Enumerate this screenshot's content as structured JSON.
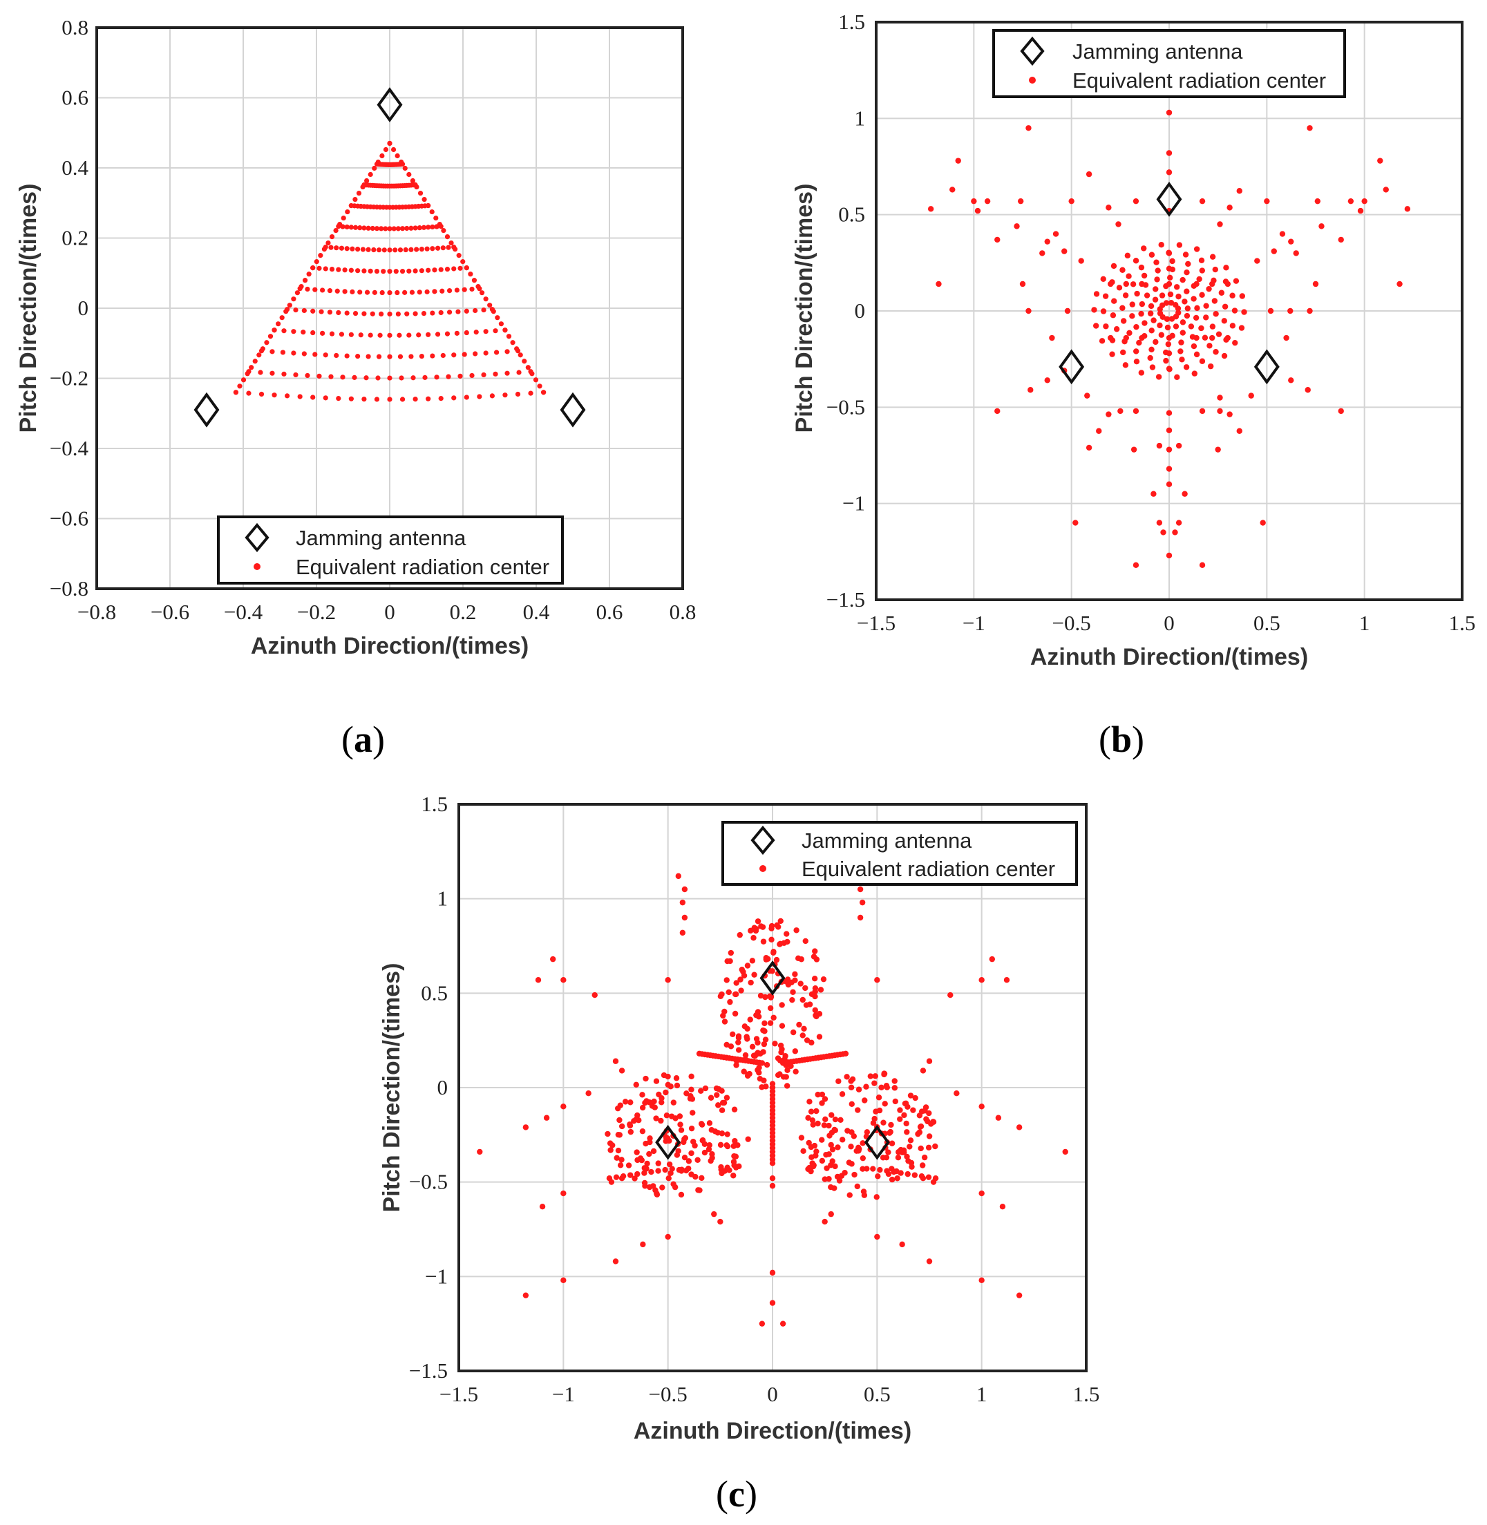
{
  "figure": {
    "panels": [
      "a",
      "b",
      "c"
    ]
  },
  "colors": {
    "point": "#ff1a1a",
    "marker": "#111111",
    "grid": "#d4d4d4",
    "frame": "#222222"
  },
  "chart_data": [
    {
      "id": "a",
      "type": "scatter",
      "caption_letter": "a",
      "xlabel": "Azinuth Direction/(times)",
      "ylabel": "Pitch Direction/(times)",
      "xlim": [
        -0.8,
        0.8
      ],
      "ylim": [
        -0.8,
        0.8
      ],
      "xticks": [
        -0.8,
        -0.6,
        -0.4,
        -0.2,
        0,
        0.2,
        0.4,
        0.6,
        0.8
      ],
      "yticks": [
        -0.8,
        -0.6,
        -0.4,
        -0.2,
        0,
        0.2,
        0.4,
        0.6,
        0.8
      ],
      "xticklabels": [
        "−0.8",
        "−0.6",
        "−0.4",
        "−0.2",
        "0",
        "0.2",
        "0.4",
        "0.6",
        "0.8"
      ],
      "yticklabels": [
        "−0.8",
        "−0.6",
        "−0.4",
        "−0.2",
        "0",
        "0.2",
        "0.4",
        "0.6",
        "0.8"
      ],
      "grid": true,
      "legend_position": "bottom-center",
      "legend": [
        "Jamming antenna",
        "Equivalent radiation center"
      ],
      "series": [
        {
          "name": "Jamming antenna",
          "marker": "diamond",
          "points": [
            [
              0,
              0.58
            ],
            [
              -0.5,
              -0.29
            ],
            [
              0.5,
              -0.29
            ]
          ]
        },
        {
          "name": "Equivalent radiation center",
          "marker": "dot",
          "generator": "triangle-fan",
          "vertices": [
            [
              0,
              0.47
            ],
            [
              -0.42,
              -0.24
            ],
            [
              0.42,
              -0.24
            ]
          ],
          "rays": 24,
          "points_per_ray": 12
        }
      ]
    },
    {
      "id": "b",
      "type": "scatter",
      "caption_letter": "b",
      "xlabel": "Azinuth Direction/(times)",
      "ylabel": "Pitch Direction/(times)",
      "xlim": [
        -1.5,
        1.5
      ],
      "ylim": [
        -1.5,
        1.5
      ],
      "xticks": [
        -1.5,
        -1,
        -0.5,
        0,
        0.5,
        1,
        1.5
      ],
      "yticks": [
        -1.5,
        -1,
        -0.5,
        0,
        0.5,
        1,
        1.5
      ],
      "xticklabels": [
        "−1.5",
        "−1",
        "−0.5",
        "0",
        "0.5",
        "1",
        "1.5"
      ],
      "yticklabels": [
        "−1.5",
        "−1",
        "−0.5",
        "0",
        "0.5",
        "1",
        "1.5"
      ],
      "grid": true,
      "legend_position": "top-center",
      "legend": [
        "Jamming antenna",
        "Equivalent radiation center"
      ],
      "series": [
        {
          "name": "Jamming antenna",
          "marker": "diamond",
          "points": [
            [
              0,
              0.58
            ],
            [
              -0.5,
              -0.29
            ],
            [
              0.5,
              -0.29
            ]
          ]
        },
        {
          "name": "Equivalent radiation center",
          "marker": "dot",
          "generator": "radial-dense",
          "center": [
            0,
            0
          ],
          "points": [
            [
              0,
              1.03
            ],
            [
              -0.72,
              0.95
            ],
            [
              0.72,
              0.95
            ],
            [
              -1.08,
              0.78
            ],
            [
              1.08,
              0.78
            ],
            [
              -1.11,
              0.63
            ],
            [
              1.11,
              0.63
            ],
            [
              -1.22,
              0.53
            ],
            [
              1.22,
              0.53
            ],
            [
              -1.0,
              0.57
            ],
            [
              1.0,
              0.57
            ],
            [
              -0.93,
              0.57
            ],
            [
              0.93,
              0.57
            ],
            [
              -0.98,
              0.52
            ],
            [
              0.98,
              0.52
            ],
            [
              -0.76,
              0.57
            ],
            [
              0.76,
              0.57
            ],
            [
              -0.5,
              0.57
            ],
            [
              0.5,
              0.57
            ],
            [
              -0.17,
              0.57
            ],
            [
              0.17,
              0.57
            ],
            [
              -0.88,
              0.37
            ],
            [
              0.88,
              0.37
            ],
            [
              -0.78,
              0.44
            ],
            [
              0.78,
              0.44
            ],
            [
              -0.58,
              0.4
            ],
            [
              0.58,
              0.4
            ],
            [
              -0.65,
              0.3
            ],
            [
              0.65,
              0.3
            ],
            [
              -1.18,
              0.14
            ],
            [
              1.18,
              0.14
            ],
            [
              -0.75,
              0.14
            ],
            [
              0.75,
              0.14
            ],
            [
              -0.6,
              -0.14
            ],
            [
              0.6,
              -0.14
            ],
            [
              -0.88,
              -0.52
            ],
            [
              0.88,
              -0.52
            ],
            [
              -0.42,
              -0.44
            ],
            [
              0.42,
              -0.44
            ],
            [
              -0.48,
              -1.1
            ],
            [
              0.48,
              -1.1
            ],
            [
              -0.17,
              -1.32
            ],
            [
              0.17,
              -1.32
            ],
            [
              0,
              -1.27
            ],
            [
              -0.03,
              -1.15
            ],
            [
              0.03,
              -1.15
            ],
            [
              -0.05,
              -1.1
            ],
            [
              0.05,
              -1.1
            ],
            [
              -0.08,
              -0.95
            ],
            [
              0.08,
              -0.95
            ],
            [
              0,
              -0.9
            ],
            [
              -0.18,
              -0.72
            ],
            [
              0.25,
              -0.72
            ],
            [
              -0.05,
              -0.7
            ],
            [
              0.05,
              -0.7
            ],
            [
              -0.17,
              -0.52
            ],
            [
              0.17,
              -0.52
            ],
            [
              0,
              -0.53
            ],
            [
              0.26,
              -0.52
            ],
            [
              -0.25,
              -0.52
            ]
          ]
        }
      ]
    },
    {
      "id": "c",
      "type": "scatter",
      "caption_letter": "c",
      "xlabel": "Azinuth Direction/(times)",
      "ylabel": "Pitch Direction/(times)",
      "xlim": [
        -1.5,
        1.5
      ],
      "ylim": [
        -1.5,
        1.5
      ],
      "xticks": [
        -1.5,
        -1,
        -0.5,
        0,
        0.5,
        1,
        1.5
      ],
      "yticks": [
        -1.5,
        -1,
        -0.5,
        0,
        0.5,
        1,
        1.5
      ],
      "xticklabels": [
        "−1.5",
        "−1",
        "−0.5",
        "0",
        "0.5",
        "1",
        "1.5"
      ],
      "yticklabels": [
        "−1.5",
        "−1",
        "−0.5",
        "0",
        "0.5",
        "1",
        "1.5"
      ],
      "grid": true,
      "legend_position": "top-right",
      "legend": [
        "Jamming antenna",
        "Equivalent radiation center"
      ],
      "series": [
        {
          "name": "Jamming antenna",
          "marker": "diamond",
          "points": [
            [
              0,
              0.58
            ],
            [
              -0.5,
              -0.29
            ],
            [
              0.5,
              -0.29
            ]
          ]
        },
        {
          "name": "Equivalent radiation center",
          "marker": "dot",
          "generator": "three-lobe",
          "lobe_centers": [
            [
              0,
              0.45
            ],
            [
              -0.45,
              -0.25
            ],
            [
              0.45,
              -0.25
            ]
          ],
          "points": [
            [
              -0.45,
              1.12
            ],
            [
              -0.42,
              1.05
            ],
            [
              -0.43,
              0.98
            ],
            [
              -0.42,
              0.9
            ],
            [
              -0.43,
              0.82
            ],
            [
              0.42,
              1.05
            ],
            [
              0.43,
              0.98
            ],
            [
              0.42,
              0.9
            ],
            [
              -1.05,
              0.68
            ],
            [
              1.05,
              0.68
            ],
            [
              -1.12,
              0.57
            ],
            [
              1.12,
              0.57
            ],
            [
              -1.0,
              0.57
            ],
            [
              1.0,
              0.57
            ],
            [
              -0.85,
              0.49
            ],
            [
              0.85,
              0.49
            ],
            [
              -0.5,
              0.57
            ],
            [
              0.5,
              0.57
            ],
            [
              -0.75,
              0.14
            ],
            [
              0.75,
              0.14
            ],
            [
              -0.72,
              0.09
            ],
            [
              0.72,
              0.09
            ],
            [
              -0.88,
              -0.03
            ],
            [
              0.88,
              -0.03
            ],
            [
              -1.0,
              -0.1
            ],
            [
              1.0,
              -0.1
            ],
            [
              -1.08,
              -0.16
            ],
            [
              1.08,
              -0.16
            ],
            [
              -1.18,
              -0.21
            ],
            [
              1.18,
              -0.21
            ],
            [
              -1.4,
              -0.34
            ],
            [
              1.4,
              -0.34
            ],
            [
              -1.0,
              -0.56
            ],
            [
              1.0,
              -0.56
            ],
            [
              -1.1,
              -0.63
            ],
            [
              1.1,
              -0.63
            ],
            [
              -1.0,
              -1.02
            ],
            [
              1.0,
              -1.02
            ],
            [
              -1.18,
              -1.1
            ],
            [
              1.18,
              -1.1
            ],
            [
              -0.75,
              -0.92
            ],
            [
              0.75,
              -0.92
            ],
            [
              -0.62,
              -0.83
            ],
            [
              0.62,
              -0.83
            ],
            [
              -0.5,
              -0.79
            ],
            [
              0.5,
              -0.79
            ],
            [
              -0.28,
              -0.67
            ],
            [
              0.28,
              -0.67
            ],
            [
              -0.25,
              -0.71
            ],
            [
              0.25,
              -0.71
            ],
            [
              0,
              -0.98
            ],
            [
              0,
              -1.14
            ],
            [
              -0.05,
              -1.25
            ],
            [
              0.05,
              -1.25
            ],
            [
              0,
              -0.52
            ],
            [
              0,
              -0.48
            ],
            [
              -0.77,
              -0.5
            ],
            [
              0.77,
              -0.5
            ],
            [
              -0.72,
              -0.48
            ],
            [
              0.72,
              -0.48
            ]
          ]
        }
      ]
    }
  ]
}
